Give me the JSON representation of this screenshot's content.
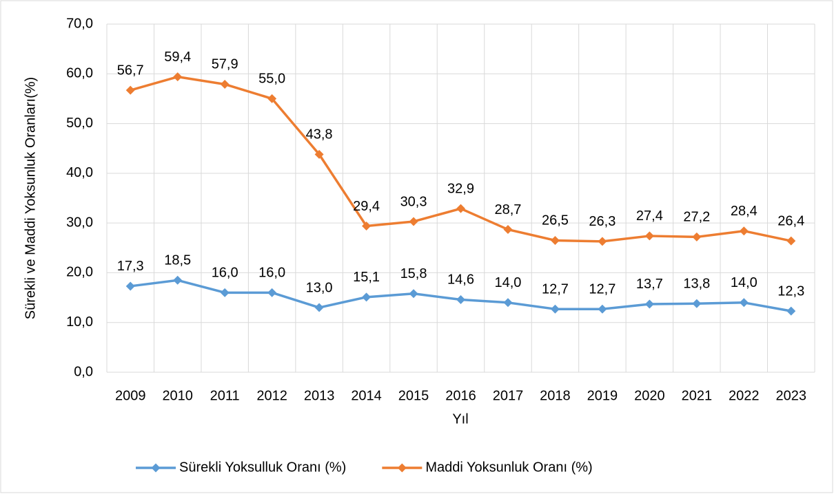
{
  "chart_data": {
    "type": "line",
    "x_label": "Yıl",
    "y_label": "Sürekli ve Maddi Yoksunluk Oranları(%)",
    "categories": [
      "2009",
      "2010",
      "2011",
      "2012",
      "2013",
      "2014",
      "2015",
      "2016",
      "2017",
      "2018",
      "2019",
      "2020",
      "2021",
      "2022",
      "2023"
    ],
    "series": [
      {
        "name": "Sürekli Yoksulluk Oranı (%)",
        "color": "#5b9bd5",
        "values": [
          17.3,
          18.5,
          16.0,
          16.0,
          13.0,
          15.1,
          15.8,
          14.6,
          14.0,
          12.7,
          12.7,
          13.7,
          13.8,
          14.0,
          12.3
        ],
        "value_labels": [
          "17,3",
          "18,5",
          "16,0",
          "16,0",
          "13,0",
          "15,1",
          "15,8",
          "14,6",
          "14,0",
          "12,7",
          "12,7",
          "13,7",
          "13,8",
          "14,0",
          "12,3"
        ]
      },
      {
        "name": "Maddi Yoksunluk Oranı (%)",
        "color": "#ed7d31",
        "values": [
          56.7,
          59.4,
          57.9,
          55.0,
          43.8,
          29.4,
          30.3,
          32.9,
          28.7,
          26.5,
          26.3,
          27.4,
          27.2,
          28.4,
          26.4
        ],
        "value_labels": [
          "56,7",
          "59,4",
          "57,9",
          "55,0",
          "43,8",
          "29,4",
          "30,3",
          "32,9",
          "28,7",
          "26,5",
          "26,3",
          "27,4",
          "27,2",
          "28,4",
          "26,4"
        ]
      }
    ],
    "ylim": [
      0,
      70
    ],
    "yticks": [
      {
        "value": 0,
        "label": "0,0"
      },
      {
        "value": 10,
        "label": "10,0"
      },
      {
        "value": 20,
        "label": "20,0"
      },
      {
        "value": 30,
        "label": "30,0"
      },
      {
        "value": 40,
        "label": "40,0"
      },
      {
        "value": 50,
        "label": "50,0"
      },
      {
        "value": 60,
        "label": "60,0"
      },
      {
        "value": 70,
        "label": "70,0"
      }
    ],
    "grid": true,
    "legend": "bottom"
  }
}
